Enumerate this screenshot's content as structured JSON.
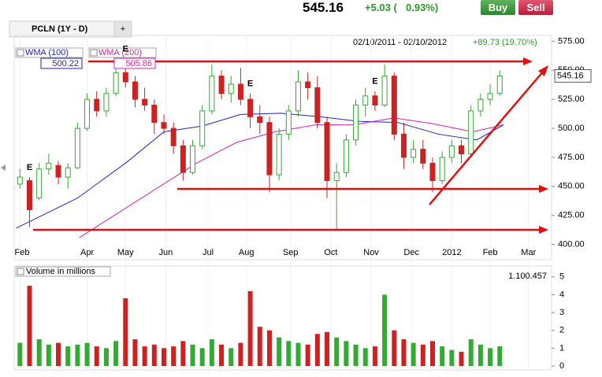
{
  "header": {
    "price": "545.16",
    "change": "+5.03 (",
    "change_pct": "0.93%)",
    "buy": "Buy",
    "sell": "Sell"
  },
  "tabs": [
    "PCLN (1Y - D)",
    "+"
  ],
  "chart_data": [
    {
      "type": "candlestick",
      "range_label": "02/10/2011 - 02/10/2012",
      "range_change": "+89.73 (19.70%)",
      "up_color": "#33aa33",
      "down_color": "#cc2222",
      "x": [
        7,
        12,
        17,
        22,
        27,
        32,
        37,
        42,
        47,
        52,
        57,
        62,
        67,
        72,
        77,
        82,
        87,
        92,
        97,
        102,
        107,
        112,
        117,
        122,
        127,
        132,
        137,
        142,
        147,
        152,
        157,
        162,
        167,
        172,
        177,
        182,
        187,
        192,
        197,
        202,
        207,
        212,
        217,
        222,
        227,
        232,
        237,
        242,
        247,
        252,
        257
      ],
      "open": [
        452,
        455,
        440,
        465,
        468,
        458,
        466,
        500,
        525,
        515,
        530,
        548,
        540,
        525,
        520,
        505,
        500,
        485,
        462,
        485,
        515,
        545,
        530,
        538,
        525,
        510,
        505,
        460,
        495,
        515,
        540,
        535,
        505,
        455,
        462,
        490,
        520,
        528,
        520,
        545,
        495,
        475,
        482,
        470,
        455,
        475,
        485,
        478,
        515,
        525,
        530
      ],
      "high": [
        465,
        458,
        470,
        478,
        472,
        470,
        505,
        530,
        532,
        535,
        555,
        560,
        545,
        535,
        525,
        512,
        505,
        490,
        490,
        520,
        555,
        550,
        545,
        552,
        530,
        520,
        510,
        500,
        520,
        550,
        548,
        545,
        510,
        470,
        495,
        525,
        535,
        532,
        555,
        548,
        505,
        490,
        490,
        475,
        480,
        490,
        490,
        520,
        530,
        538,
        550
      ],
      "low": [
        448,
        415,
        438,
        460,
        452,
        448,
        465,
        498,
        510,
        510,
        528,
        535,
        518,
        515,
        495,
        495,
        478,
        455,
        460,
        482,
        512,
        525,
        522,
        520,
        500,
        495,
        445,
        455,
        490,
        510,
        525,
        500,
        440,
        412,
        458,
        485,
        510,
        515,
        518,
        490,
        465,
        470,
        465,
        445,
        452,
        470,
        470,
        476,
        510,
        520,
        528
      ],
      "close": [
        458,
        430,
        465,
        470,
        458,
        466,
        500,
        525,
        515,
        530,
        548,
        540,
        525,
        520,
        505,
        500,
        485,
        462,
        485,
        515,
        545,
        530,
        538,
        525,
        510,
        505,
        460,
        495,
        515,
        540,
        535,
        505,
        455,
        462,
        490,
        520,
        528,
        520,
        545,
        495,
        475,
        482,
        470,
        455,
        475,
        485,
        478,
        515,
        525,
        530,
        545.16
      ],
      "indicators": [
        {
          "name": "WMA (100)",
          "color": "#2222cc",
          "value_label": "500.22",
          "x": [
            5,
            37,
            62,
            82,
            102,
            122,
            143,
            163,
            184,
            204,
            225,
            245,
            259
          ],
          "values": [
            414,
            440,
            470,
            497,
            502,
            512,
            513,
            510,
            506,
            505,
            495,
            490,
            503
          ]
        },
        {
          "name": "WMA (200)",
          "color": "#dd22aa",
          "value_label": "505.86",
          "x": [
            38,
            78,
            99,
            120,
            140,
            161,
            181,
            202,
            222,
            243,
            259
          ],
          "values": [
            406,
            448,
            470,
            488,
            497,
            503,
            503,
            509,
            504,
            497,
            503
          ]
        }
      ],
      "events": [
        {
          "label": "E",
          "x": 12
        },
        {
          "label": "E",
          "x": 62
        },
        {
          "label": "E",
          "x": 127
        },
        {
          "label": "E",
          "x": 192
        }
      ],
      "xlim": [
        4,
        284
      ],
      "xticks": [
        {
          "value": 7,
          "label": "Feb"
        },
        {
          "value": 42,
          "label": "Apr"
        },
        {
          "value": 62,
          "label": "May"
        },
        {
          "value": 83,
          "label": "Jun"
        },
        {
          "value": 105,
          "label": "Jul"
        },
        {
          "value": 125,
          "label": "Aug"
        },
        {
          "value": 148,
          "label": "Sep"
        },
        {
          "value": 169,
          "label": "Oct"
        },
        {
          "value": 190,
          "label": "Nov"
        },
        {
          "value": 211,
          "label": "Dec"
        },
        {
          "value": 232,
          "label": "2012"
        },
        {
          "value": 252,
          "label": "Feb"
        },
        {
          "value": 272,
          "label": "Mar"
        }
      ],
      "ylim": [
        395,
        580
      ],
      "yticks": [
        {
          "value": 400,
          "label": "400.00"
        },
        {
          "value": 425,
          "label": "425.00"
        },
        {
          "value": 450,
          "label": "450.00"
        },
        {
          "value": 475,
          "label": "475.00"
        },
        {
          "value": 500,
          "label": "500.00"
        },
        {
          "value": 525,
          "label": "525.00"
        },
        {
          "value": 550,
          "label": "550.00"
        },
        {
          "value": 575,
          "label": "575.00"
        }
      ]
    },
    {
      "type": "bar",
      "title": "Volume in millions",
      "last_label": "1.100.457",
      "values": [
        1.3,
        4.5,
        1.5,
        1.2,
        1.3,
        1.1,
        1.2,
        1.3,
        1.1,
        1.0,
        1.4,
        3.8,
        1.5,
        1.1,
        1.2,
        1.0,
        1.1,
        1.4,
        1.2,
        1.0,
        1.5,
        1.2,
        1.0,
        1.3,
        4.2,
        2.2,
        2.0,
        1.6,
        1.4,
        1.3,
        1.2,
        1.8,
        1.9,
        1.6,
        1.4,
        1.2,
        1.0,
        1.1,
        4.0,
        2.0,
        1.5,
        1.3,
        1.2,
        1.4,
        1.1,
        0.9,
        0.8,
        1.5,
        1.2,
        1.0,
        1.1
      ],
      "ylim": [
        0,
        5.3
      ],
      "yticks": [
        0,
        1,
        2,
        3,
        4,
        5
      ]
    }
  ]
}
